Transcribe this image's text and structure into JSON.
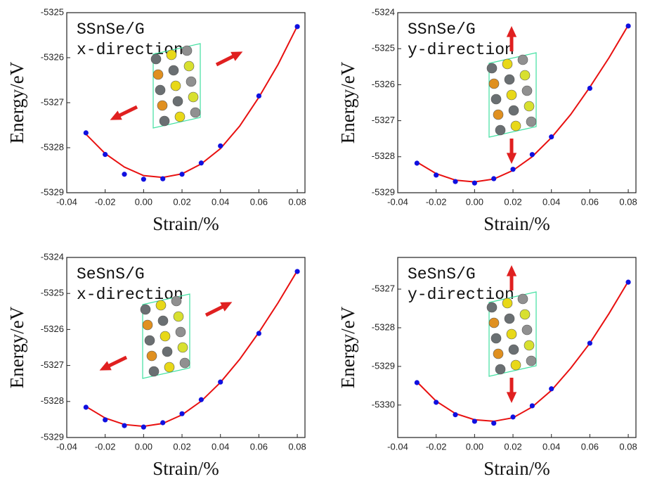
{
  "chart_data": [
    {
      "type": "scatter",
      "annotation": [
        "SSnSe/G",
        "x-direction"
      ],
      "x_label": "Strain/%",
      "y_label": "Energy/eV",
      "xlim": [
        -0.04,
        0.084
      ],
      "ylim": [
        -5329,
        -5325
      ],
      "xticks": [
        -0.04,
        -0.02,
        {
          "value": 0,
          "label": "0.00"
        },
        0.02,
        0.04,
        0.06,
        0.08
      ],
      "yticks": [
        -5329,
        -5328,
        -5327,
        -5326,
        -5325
      ],
      "series": [
        {
          "color": "#1010e0",
          "x": [
            -0.03,
            -0.02,
            -0.01,
            0,
            0.01,
            0.02,
            0.03,
            0.04,
            0.06,
            0.08
          ],
          "values": [
            -5327.67,
            -5328.15,
            -5328.59,
            -5328.7,
            -5328.69,
            -5328.59,
            -5328.34,
            -5327.96,
            -5326.85,
            -5325.31
          ]
        },
        {
          "type": "line",
          "color": "#e81010",
          "x": [
            -0.03,
            -0.02,
            -0.01,
            0,
            0.01,
            0.02,
            0.03,
            0.04,
            0.05,
            0.06,
            0.07,
            0.08
          ],
          "values": [
            -5327.7,
            -5328.13,
            -5328.43,
            -5328.62,
            -5328.66,
            -5328.58,
            -5328.36,
            -5328.02,
            -5327.52,
            -5326.88,
            -5326.15,
            -5325.3
          ]
        }
      ]
    },
    {
      "type": "scatter",
      "annotation": [
        "SSnSe/G",
        "y-direction"
      ],
      "x_label": "Strain/%",
      "y_label": "Energy/eV",
      "xlim": [
        -0.04,
        0.084
      ],
      "ylim": [
        -5329,
        -5324
      ],
      "xticks": [
        -0.04,
        -0.02,
        {
          "value": 0,
          "label": "0.00"
        },
        0.02,
        0.04,
        0.06,
        0.08
      ],
      "yticks": [
        -5329,
        -5328,
        -5327,
        -5326,
        -5325,
        -5324
      ],
      "series": [
        {
          "color": "#1010e0",
          "x": [
            -0.03,
            -0.02,
            -0.01,
            0,
            0.01,
            0.02,
            0.03,
            0.04,
            0.06,
            0.08
          ],
          "values": [
            -5328.18,
            -5328.51,
            -5328.69,
            -5328.73,
            -5328.61,
            -5328.35,
            -5327.94,
            -5327.45,
            -5326.1,
            -5324.37
          ]
        },
        {
          "type": "line",
          "color": "#e81010",
          "x": [
            -0.03,
            -0.02,
            -0.01,
            0,
            0.01,
            0.02,
            0.03,
            0.04,
            0.05,
            0.06,
            0.07,
            0.08
          ],
          "values": [
            -5328.15,
            -5328.47,
            -5328.65,
            -5328.7,
            -5328.62,
            -5328.38,
            -5328.0,
            -5327.47,
            -5326.83,
            -5326.07,
            -5325.25,
            -5324.35
          ]
        }
      ]
    },
    {
      "type": "scatter",
      "annotation": [
        "SeSnS/G",
        "x-direction"
      ],
      "x_label": "Strain/%",
      "y_label": "Energy/eV",
      "xlim": [
        -0.04,
        0.084
      ],
      "ylim": [
        -5329,
        -5324
      ],
      "xticks": [
        -0.04,
        -0.02,
        {
          "value": 0,
          "label": "0.00"
        },
        0.02,
        0.04,
        0.06,
        0.08
      ],
      "yticks": [
        -5329,
        -5328,
        -5327,
        -5326,
        -5325,
        -5324
      ],
      "series": [
        {
          "color": "#1010e0",
          "x": [
            -0.03,
            -0.02,
            -0.01,
            0,
            0.01,
            0.02,
            0.03,
            0.04,
            0.06,
            0.08
          ],
          "values": [
            -5328.16,
            -5328.51,
            -5328.67,
            -5328.71,
            -5328.59,
            -5328.34,
            -5327.95,
            -5327.46,
            -5326.11,
            -5324.39
          ]
        },
        {
          "type": "line",
          "color": "#e81010",
          "x": [
            -0.03,
            -0.02,
            -0.01,
            0,
            0.01,
            0.02,
            0.03,
            0.04,
            0.05,
            0.06,
            0.07,
            0.08
          ],
          "values": [
            -5328.14,
            -5328.46,
            -5328.64,
            -5328.69,
            -5328.61,
            -5328.37,
            -5327.99,
            -5327.47,
            -5326.83,
            -5326.08,
            -5325.26,
            -5324.37
          ]
        }
      ]
    },
    {
      "type": "scatter",
      "annotation": [
        "SeSnS/G",
        "y-direction"
      ],
      "x_label": "Strain/%",
      "y_label": "Energy/eV",
      "xlim": [
        -0.04,
        0.084
      ],
      "ylim": [
        -5330.84,
        -5326.18
      ],
      "xticks": [
        -0.04,
        -0.02,
        {
          "value": 0,
          "label": "0.00"
        },
        0.02,
        0.04,
        0.06,
        0.08
      ],
      "yticks": [
        -5330,
        -5329,
        -5328,
        -5327
      ],
      "series": [
        {
          "color": "#1010e0",
          "x": [
            -0.03,
            -0.02,
            -0.01,
            0,
            0.01,
            0.02,
            0.03,
            0.04,
            0.06,
            0.08
          ],
          "values": [
            -5329.42,
            -5329.93,
            -5330.25,
            -5330.42,
            -5330.47,
            -5330.31,
            -5330.02,
            -5329.58,
            -5328.4,
            -5326.82
          ]
        },
        {
          "type": "line",
          "color": "#e81010",
          "x": [
            -0.03,
            -0.02,
            -0.01,
            0,
            0.01,
            0.02,
            0.03,
            0.04,
            0.05,
            0.06,
            0.07,
            0.08
          ],
          "values": [
            -5329.4,
            -5329.9,
            -5330.22,
            -5330.38,
            -5330.42,
            -5330.33,
            -5330.05,
            -5329.62,
            -5329.05,
            -5328.4,
            -5327.63,
            -5326.8
          ]
        }
      ]
    }
  ]
}
